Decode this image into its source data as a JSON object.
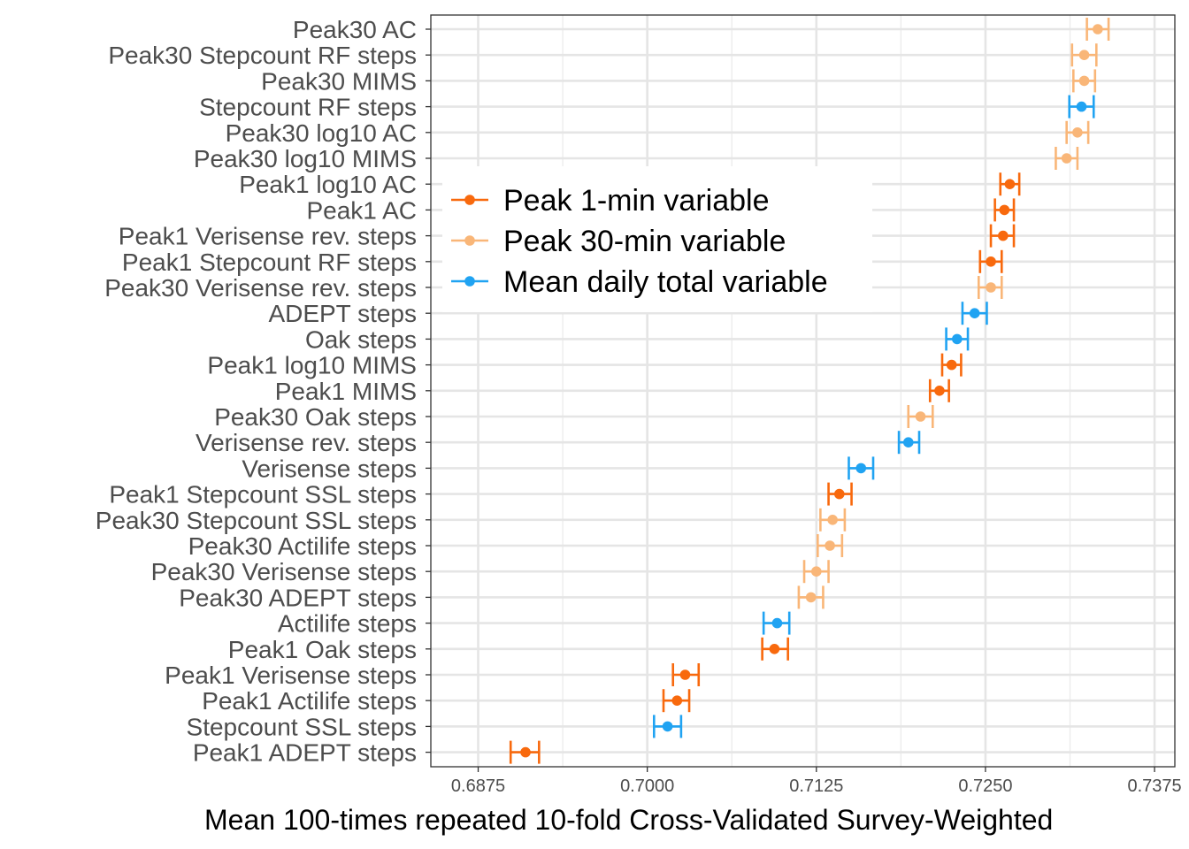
{
  "chart_data": {
    "type": "scatter",
    "subtype": "point-with-horizontal-errorbars",
    "title": "",
    "xlabel": "Mean 100-times repeated 10-fold Cross-Validated Survey-Weighted",
    "ylabel": "",
    "xlim": [
      0.684,
      0.739
    ],
    "xticks": [
      "0.6875",
      "0.7000",
      "0.7125",
      "0.7250",
      "0.7375"
    ],
    "xtick_values": [
      0.6875,
      0.7,
      0.7125,
      0.725,
      0.7375
    ],
    "grid": true,
    "legend_position": "inside-top-left",
    "legend": [
      {
        "key": "peak1",
        "label": "Peak 1-min variable",
        "color": "#F8690D"
      },
      {
        "key": "peak30",
        "label": "Peak 30-min variable",
        "color": "#F9B678"
      },
      {
        "key": "total",
        "label": "Mean daily total variable",
        "color": "#20A3F2"
      }
    ],
    "rows": [
      {
        "label": "Peak30 AC",
        "group": "peak30",
        "mean": 0.7333,
        "lo": 0.7325,
        "hi": 0.7341
      },
      {
        "label": "Peak30 Stepcount RF steps",
        "group": "peak30",
        "mean": 0.7323,
        "lo": 0.7314,
        "hi": 0.7332
      },
      {
        "label": "Peak30 MIMS",
        "group": "peak30",
        "mean": 0.7323,
        "lo": 0.7315,
        "hi": 0.7331
      },
      {
        "label": "Stepcount RF steps",
        "group": "total",
        "mean": 0.7321,
        "lo": 0.7312,
        "hi": 0.733
      },
      {
        "label": "Peak30 log10 AC",
        "group": "peak30",
        "mean": 0.7318,
        "lo": 0.731,
        "hi": 0.7326
      },
      {
        "label": "Peak30 log10 MIMS",
        "group": "peak30",
        "mean": 0.731,
        "lo": 0.7302,
        "hi": 0.7318
      },
      {
        "label": "Peak1 log10 AC",
        "group": "peak1",
        "mean": 0.7268,
        "lo": 0.7261,
        "hi": 0.7275
      },
      {
        "label": "Peak1 AC",
        "group": "peak1",
        "mean": 0.7264,
        "lo": 0.7257,
        "hi": 0.7271
      },
      {
        "label": "Peak1 Verisense rev. steps",
        "group": "peak1",
        "mean": 0.7263,
        "lo": 0.7254,
        "hi": 0.7271
      },
      {
        "label": "Peak1 Stepcount RF steps",
        "group": "peak1",
        "mean": 0.7254,
        "lo": 0.7246,
        "hi": 0.7262
      },
      {
        "label": "Peak30 Verisense rev. steps",
        "group": "peak30",
        "mean": 0.7254,
        "lo": 0.7245,
        "hi": 0.7262
      },
      {
        "label": "ADEPT steps",
        "group": "total",
        "mean": 0.7242,
        "lo": 0.7233,
        "hi": 0.7251
      },
      {
        "label": "Oak steps",
        "group": "total",
        "mean": 0.7229,
        "lo": 0.7221,
        "hi": 0.7237
      },
      {
        "label": "Peak1 log10 MIMS",
        "group": "peak1",
        "mean": 0.7225,
        "lo": 0.7218,
        "hi": 0.7232
      },
      {
        "label": "Peak1 MIMS",
        "group": "peak1",
        "mean": 0.7216,
        "lo": 0.7209,
        "hi": 0.7223
      },
      {
        "label": "Peak30 Oak steps",
        "group": "peak30",
        "mean": 0.7202,
        "lo": 0.7193,
        "hi": 0.7211
      },
      {
        "label": "Verisense rev. steps",
        "group": "total",
        "mean": 0.7193,
        "lo": 0.7186,
        "hi": 0.7201
      },
      {
        "label": "Verisense steps",
        "group": "total",
        "mean": 0.7158,
        "lo": 0.7149,
        "hi": 0.7167
      },
      {
        "label": "Peak1 Stepcount SSL steps",
        "group": "peak1",
        "mean": 0.7142,
        "lo": 0.7134,
        "hi": 0.7151
      },
      {
        "label": "Peak30 Stepcount SSL steps",
        "group": "peak30",
        "mean": 0.7137,
        "lo": 0.7128,
        "hi": 0.7146
      },
      {
        "label": "Peak30 Actilife steps",
        "group": "peak30",
        "mean": 0.7135,
        "lo": 0.7126,
        "hi": 0.7144
      },
      {
        "label": "Peak30 Verisense steps",
        "group": "peak30",
        "mean": 0.7125,
        "lo": 0.7116,
        "hi": 0.7134
      },
      {
        "label": "Peak30 ADEPT steps",
        "group": "peak30",
        "mean": 0.7121,
        "lo": 0.7112,
        "hi": 0.713
      },
      {
        "label": "Actilife steps",
        "group": "total",
        "mean": 0.7096,
        "lo": 0.7086,
        "hi": 0.7105
      },
      {
        "label": "Peak1 Oak steps",
        "group": "peak1",
        "mean": 0.7094,
        "lo": 0.7085,
        "hi": 0.7104
      },
      {
        "label": "Peak1 Verisense steps",
        "group": "peak1",
        "mean": 0.7028,
        "lo": 0.7019,
        "hi": 0.7038
      },
      {
        "label": "Peak1 Actilife steps",
        "group": "peak1",
        "mean": 0.7022,
        "lo": 0.7012,
        "hi": 0.7031
      },
      {
        "label": "Stepcount SSL steps",
        "group": "total",
        "mean": 0.7015,
        "lo": 0.7005,
        "hi": 0.7025
      },
      {
        "label": "Peak1 ADEPT steps",
        "group": "peak1",
        "mean": 0.691,
        "lo": 0.6899,
        "hi": 0.692
      }
    ]
  }
}
